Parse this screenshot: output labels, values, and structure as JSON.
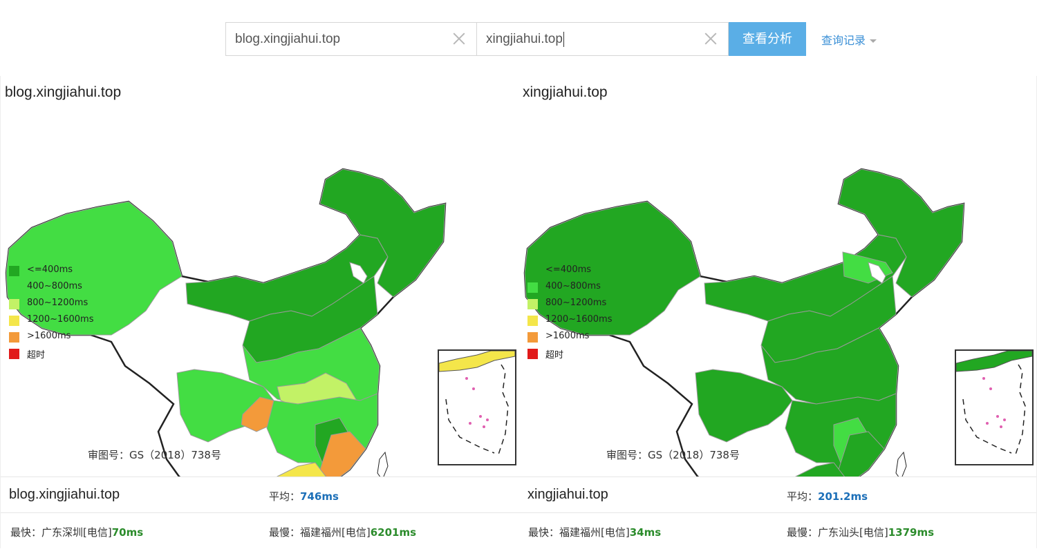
{
  "search": {
    "domain1": "blog.xingjiahui.top",
    "domain2": "xingjiahui.top",
    "button_label": "查看分析",
    "history_label": "查询记录"
  },
  "legend": [
    {
      "label": "<=400ms",
      "color": "#22a722"
    },
    {
      "label": "400~800ms",
      "color": "#43dd43"
    },
    {
      "label": "800~1200ms",
      "color": "#c2f266"
    },
    {
      "label": "1200~1600ms",
      "color": "#f4e64a"
    },
    {
      "label": ">1600ms",
      "color": "#f39a3a"
    },
    {
      "label": "超时",
      "color": "#e11a1a"
    }
  ],
  "approval_number": "审图号：GS（2018）738号",
  "panels": [
    {
      "title": "blog.xingjiahui.top",
      "avg_label": "平均：",
      "avg_value": "746ms",
      "fastest_label": "最快：",
      "fastest_location": "广东深圳[电信]",
      "fastest_value": "70ms",
      "slowest_label": "最慢：",
      "slowest_location": "福建福州[电信]",
      "slowest_value": "6201ms"
    },
    {
      "title": "xingjiahui.top",
      "avg_label": "平均：",
      "avg_value": "201.2ms",
      "fastest_label": "最快：",
      "fastest_location": "福建福州[电信]",
      "fastest_value": "34ms",
      "slowest_label": "最慢：",
      "slowest_location": "广东汕头[电信]",
      "slowest_value": "1379ms"
    }
  ],
  "colors": {
    "accent": "#5aaee6",
    "avg_value": "#1c6fb8",
    "fast_value": "#2c8c2c"
  }
}
